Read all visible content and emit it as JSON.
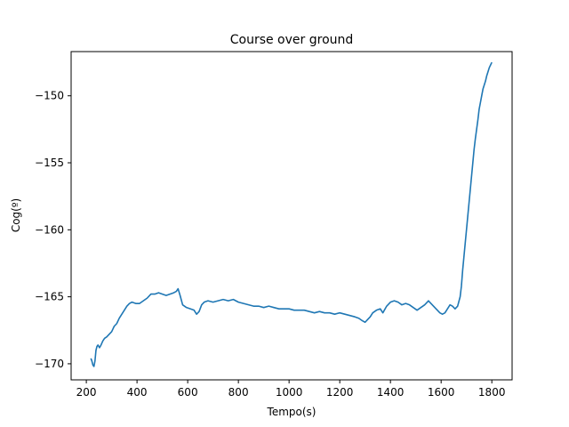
{
  "chart_data": {
    "type": "line",
    "title": "Course over ground",
    "xlabel": "Tempo(s)",
    "ylabel": "Cog(º)",
    "xlim": [
      140,
      1880
    ],
    "ylim": [
      -171.2,
      -146.7
    ],
    "xticks": [
      200,
      400,
      600,
      800,
      1000,
      1200,
      1400,
      1600,
      1800
    ],
    "xtick_labels": [
      "200",
      "400",
      "600",
      "800",
      "1000",
      "1200",
      "1400",
      "1600",
      "1800"
    ],
    "yticks": [
      -170,
      -165,
      -160,
      -155,
      -150
    ],
    "ytick_labels": [
      "−170",
      "−165",
      "−160",
      "−155",
      "−150"
    ],
    "grid": false,
    "series": [
      {
        "color": "#1f77b4",
        "x": [
          218,
          222,
          226,
          230,
          234,
          238,
          242,
          246,
          252,
          258,
          265,
          272,
          280,
          290,
          300,
          310,
          320,
          330,
          340,
          350,
          360,
          370,
          380,
          395,
          410,
          425,
          440,
          455,
          470,
          485,
          500,
          515,
          530,
          545,
          555,
          562,
          570,
          580,
          595,
          610,
          625,
          635,
          645,
          655,
          665,
          680,
          700,
          720,
          740,
          760,
          780,
          800,
          820,
          840,
          860,
          880,
          900,
          920,
          940,
          960,
          980,
          1000,
          1020,
          1040,
          1060,
          1080,
          1100,
          1120,
          1140,
          1160,
          1180,
          1200,
          1220,
          1240,
          1260,
          1275,
          1290,
          1300,
          1310,
          1320,
          1330,
          1345,
          1360,
          1370,
          1385,
          1400,
          1415,
          1430,
          1445,
          1460,
          1475,
          1490,
          1505,
          1520,
          1535,
          1550,
          1565,
          1580,
          1595,
          1605,
          1615,
          1625,
          1635,
          1645,
          1655,
          1665,
          1675,
          1680,
          1685,
          1690,
          1695,
          1700,
          1705,
          1710,
          1715,
          1720,
          1725,
          1730,
          1735,
          1740,
          1745,
          1750,
          1755,
          1760,
          1765,
          1770,
          1775,
          1780,
          1785,
          1790,
          1795,
          1800
        ],
        "y": [
          -169.6,
          -169.8,
          -170.1,
          -170.2,
          -169.8,
          -169.0,
          -168.7,
          -168.6,
          -168.8,
          -168.6,
          -168.3,
          -168.1,
          -168.0,
          -167.8,
          -167.6,
          -167.2,
          -167.0,
          -166.6,
          -166.3,
          -166.0,
          -165.7,
          -165.5,
          -165.4,
          -165.5,
          -165.5,
          -165.3,
          -165.1,
          -164.8,
          -164.8,
          -164.7,
          -164.8,
          -164.9,
          -164.8,
          -164.7,
          -164.6,
          -164.4,
          -164.9,
          -165.6,
          -165.8,
          -165.9,
          -166.0,
          -166.3,
          -166.1,
          -165.6,
          -165.4,
          -165.3,
          -165.4,
          -165.3,
          -165.2,
          -165.3,
          -165.2,
          -165.4,
          -165.5,
          -165.6,
          -165.7,
          -165.7,
          -165.8,
          -165.7,
          -165.8,
          -165.9,
          -165.9,
          -165.9,
          -166.0,
          -166.0,
          -166.0,
          -166.1,
          -166.2,
          -166.1,
          -166.2,
          -166.2,
          -166.3,
          -166.2,
          -166.3,
          -166.4,
          -166.5,
          -166.6,
          -166.8,
          -166.9,
          -166.7,
          -166.5,
          -166.2,
          -166.0,
          -165.9,
          -166.2,
          -165.7,
          -165.4,
          -165.3,
          -165.4,
          -165.6,
          -165.5,
          -165.6,
          -165.8,
          -166.0,
          -165.8,
          -165.6,
          -165.3,
          -165.6,
          -165.9,
          -166.2,
          -166.3,
          -166.2,
          -165.9,
          -165.6,
          -165.7,
          -165.9,
          -165.7,
          -165.0,
          -164.2,
          -163.0,
          -162.0,
          -161.0,
          -160.0,
          -159.0,
          -158.0,
          -157.0,
          -156.0,
          -155.0,
          -154.0,
          -153.2,
          -152.5,
          -151.8,
          -151.0,
          -150.5,
          -150.0,
          -149.5,
          -149.2,
          -148.9,
          -148.5,
          -148.2,
          -147.9,
          -147.7,
          -147.5
        ]
      }
    ]
  }
}
